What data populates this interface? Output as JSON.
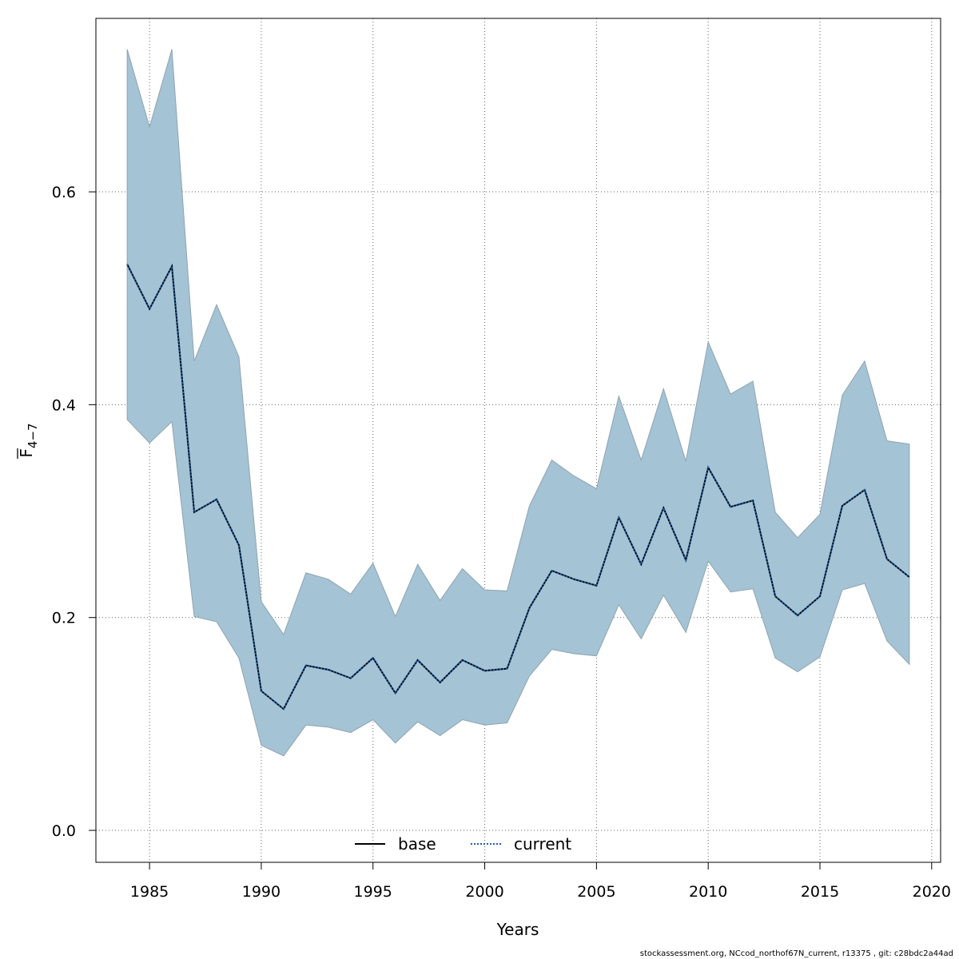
{
  "chart_data": {
    "type": "line",
    "title": "",
    "xlabel": "Years",
    "ylabel": "F",
    "ylabel_subscript": "4−7",
    "xlim": [
      1982.6,
      2020.4
    ],
    "ylim": [
      -0.03,
      0.763
    ],
    "x_ticks": [
      1985,
      1990,
      1995,
      2000,
      2005,
      2010,
      2015,
      2020
    ],
    "y_ticks": [
      0.0,
      0.2,
      0.4,
      0.6
    ],
    "x_tick_labels": [
      "1985",
      "1990",
      "1995",
      "2000",
      "2005",
      "2010",
      "2015",
      "2020"
    ],
    "y_tick_labels": [
      "0.0",
      "0.2",
      "0.4",
      "0.6"
    ],
    "grid": true,
    "legend_position": "bottom",
    "band_color": "#a4c3d5",
    "band_edge_color": "#8ea4b0",
    "x": [
      1984,
      1985,
      1986,
      1987,
      1988,
      1989,
      1990,
      1991,
      1992,
      1993,
      1994,
      1995,
      1996,
      1997,
      1998,
      1999,
      2000,
      2001,
      2002,
      2003,
      2004,
      2005,
      2006,
      2007,
      2008,
      2009,
      2010,
      2011,
      2012,
      2013,
      2014,
      2015,
      2016,
      2017,
      2018,
      2019
    ],
    "band_upper": [
      0.734,
      0.661,
      0.734,
      0.441,
      0.494,
      0.445,
      0.215,
      0.184,
      0.242,
      0.236,
      0.222,
      0.251,
      0.201,
      0.25,
      0.216,
      0.246,
      0.226,
      0.225,
      0.305,
      0.348,
      0.333,
      0.321,
      0.408,
      0.348,
      0.415,
      0.347,
      0.459,
      0.41,
      0.422,
      0.299,
      0.275,
      0.297,
      0.409,
      0.441,
      0.366,
      0.363
    ],
    "band_lower": [
      0.386,
      0.364,
      0.384,
      0.201,
      0.196,
      0.162,
      0.08,
      0.07,
      0.099,
      0.097,
      0.092,
      0.104,
      0.082,
      0.102,
      0.089,
      0.104,
      0.099,
      0.101,
      0.145,
      0.17,
      0.166,
      0.164,
      0.212,
      0.18,
      0.221,
      0.186,
      0.253,
      0.224,
      0.227,
      0.162,
      0.149,
      0.163,
      0.226,
      0.232,
      0.178,
      0.156
    ],
    "series": [
      {
        "name": "base",
        "color": "#000000",
        "style": "solid",
        "values": [
          0.532,
          0.49,
          0.53,
          0.299,
          0.311,
          0.268,
          0.131,
          0.114,
          0.155,
          0.151,
          0.143,
          0.162,
          0.129,
          0.16,
          0.139,
          0.16,
          0.15,
          0.152,
          0.209,
          0.244,
          0.236,
          0.23,
          0.294,
          0.25,
          0.303,
          0.254,
          0.341,
          0.304,
          0.31,
          0.22,
          0.202,
          0.22,
          0.305,
          0.32,
          0.255,
          0.238
        ]
      },
      {
        "name": "current",
        "color": "#1f5fa8",
        "style": "dotted",
        "values": [
          0.532,
          0.49,
          0.53,
          0.299,
          0.311,
          0.268,
          0.131,
          0.114,
          0.155,
          0.151,
          0.143,
          0.162,
          0.129,
          0.16,
          0.139,
          0.16,
          0.15,
          0.152,
          0.209,
          0.244,
          0.236,
          0.23,
          0.294,
          0.25,
          0.303,
          0.254,
          0.341,
          0.304,
          0.31,
          0.22,
          0.202,
          0.22,
          0.305,
          0.32,
          0.255,
          0.238
        ]
      }
    ]
  },
  "footer_text": "stockassessment.org, NCcod_northof67N_current, r13375 , git: c28bdc2a44ad"
}
